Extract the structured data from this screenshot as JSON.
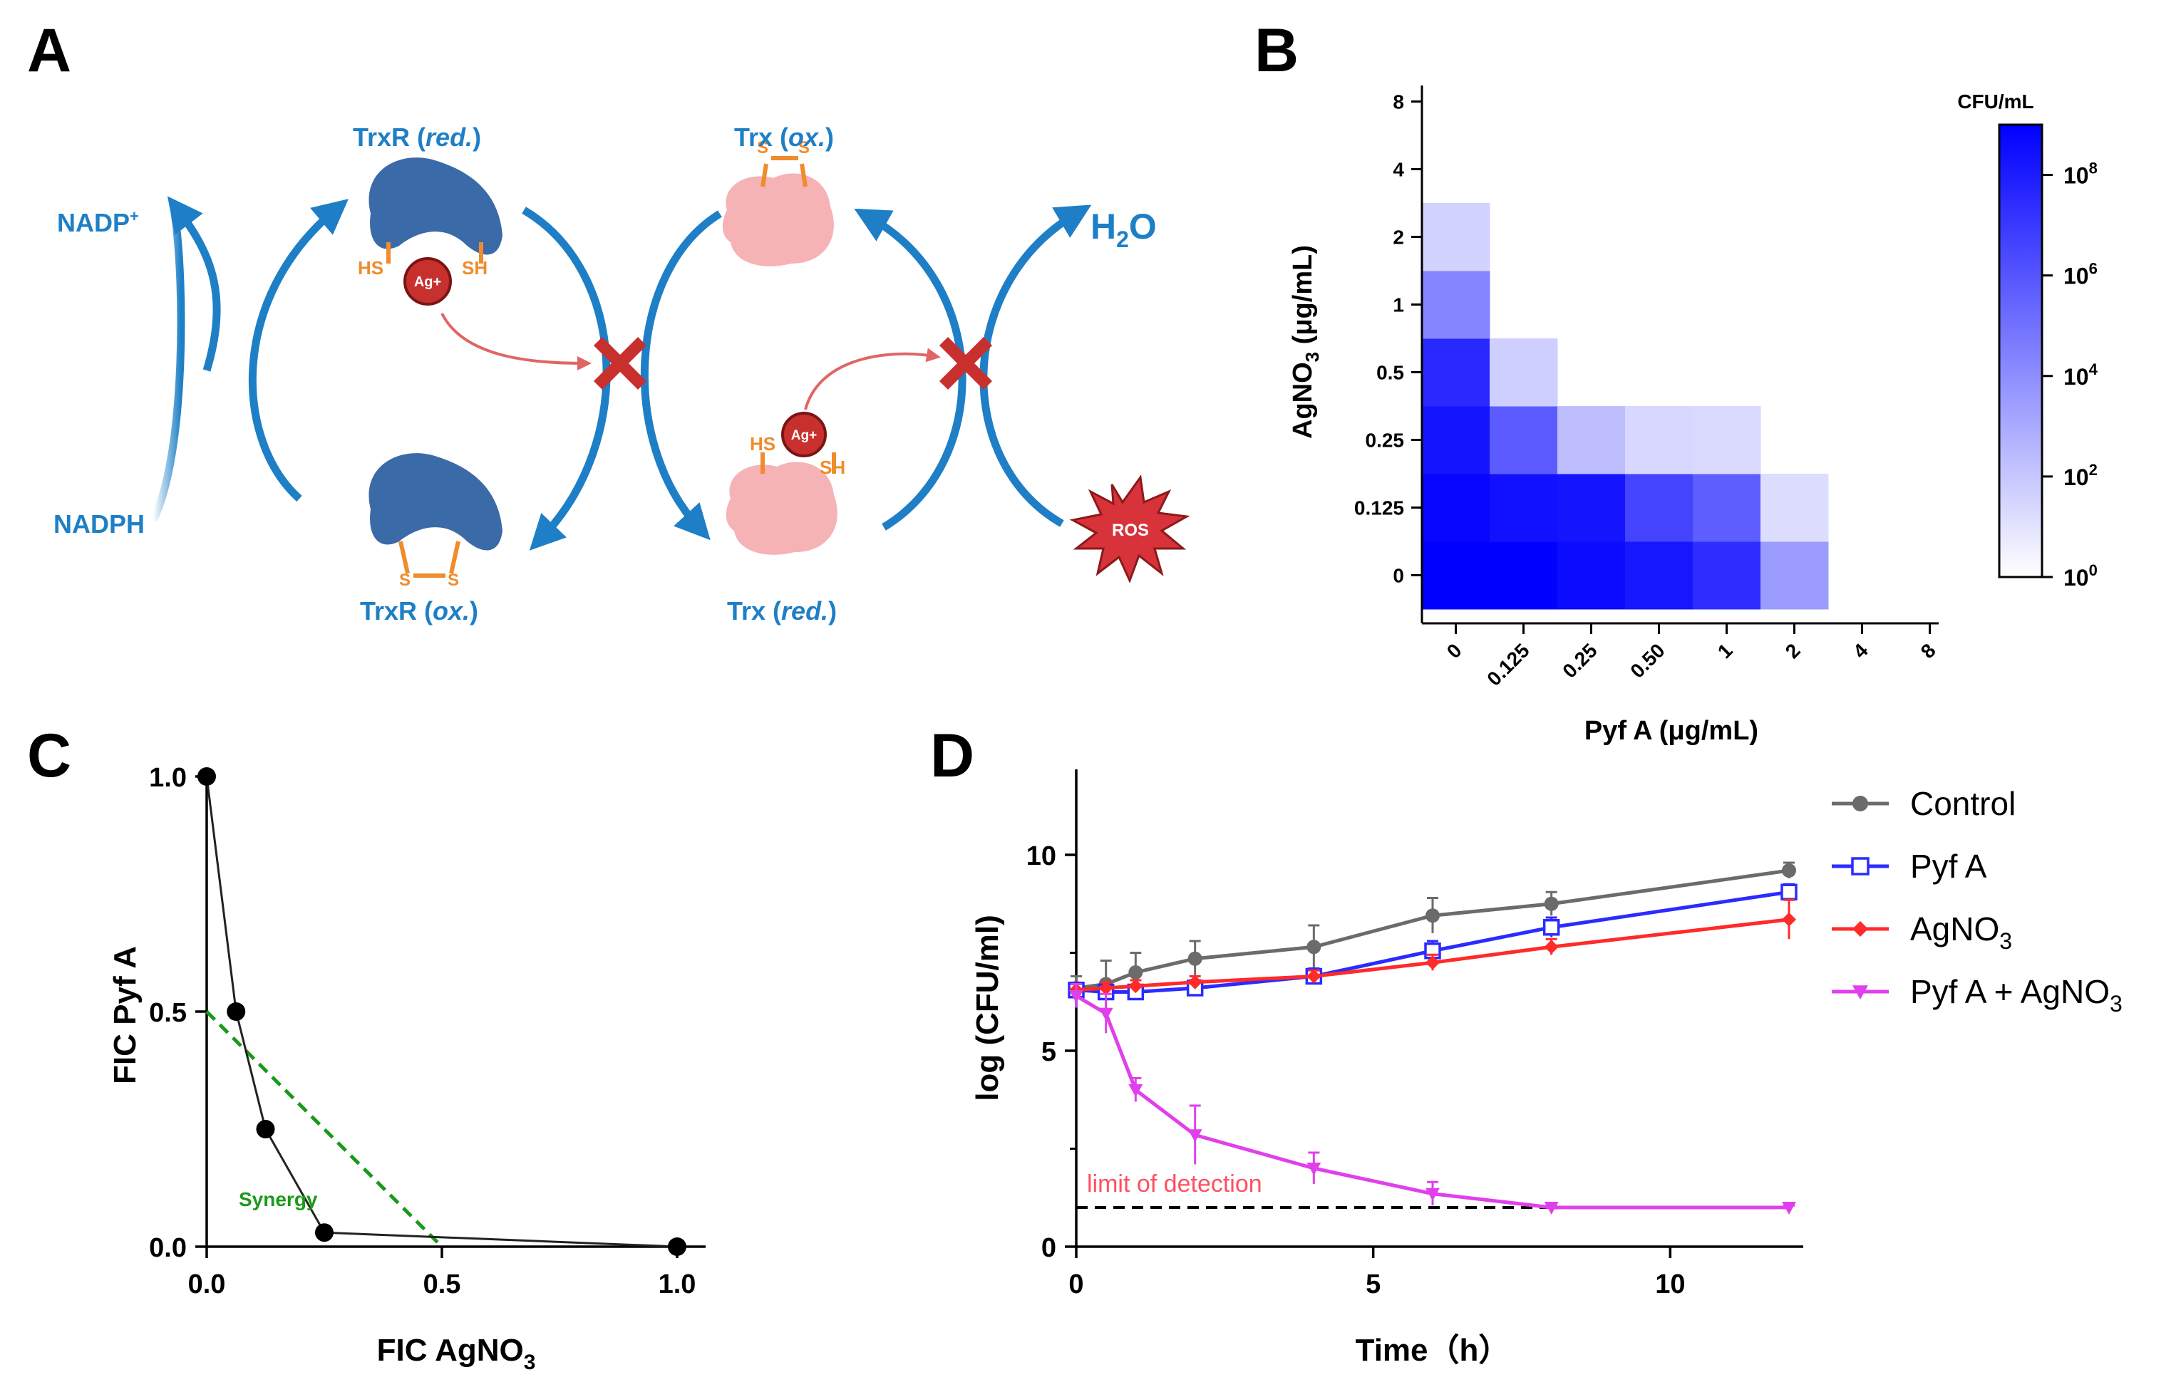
{
  "panels": {
    "A": {
      "letter": "A",
      "labels": {
        "trxr_red": "TrxR (",
        "trxr_red_it": "red.",
        "trxr_ox": "TrxR (",
        "trxr_ox_it": "ox.",
        "trx_ox": "Trx (",
        "trx_ox_it": "ox.",
        "trx_red": "Trx (",
        "trx_red_it": "red.",
        "close_paren": ")",
        "nadp": "NADP",
        "nadp_sup": "+",
        "nadph": "NADPH",
        "h2o_h": "H",
        "h2o_sub": "2",
        "h2o_o": "O",
        "ag": "Ag+",
        "hs": "HS",
        "sh": "SH",
        "s": "S",
        "ros": "ROS"
      },
      "colors": {
        "blue": "#1e7fc6",
        "enzyme": "#3b6aa8",
        "pink": "#f5b3b5",
        "red": "#c8302e"
      }
    },
    "B": {
      "letter": "B",
      "colorbar_title": "CFU/mL",
      "colorbar_ticks": [
        {
          "base": "10",
          "exp": "8"
        },
        {
          "base": "10",
          "exp": "6"
        },
        {
          "base": "10",
          "exp": "4"
        },
        {
          "base": "10",
          "exp": "2"
        },
        {
          "base": "10",
          "exp": "0"
        }
      ]
    },
    "C": {
      "letter": "C",
      "synergy_label": "Synergy"
    },
    "D": {
      "letter": "D",
      "lod_label": "limit of detection"
    }
  },
  "chart_data": [
    {
      "id": "B",
      "type": "heatmap",
      "title": "",
      "xlabel": "Pyf A (μg/mL)",
      "ylabel_main": "AgNO",
      "ylabel_sub": "3",
      "ylabel_tail": " (μg/mL)",
      "x_categories": [
        "0",
        "0.125",
        "0.25",
        "0.50",
        "1",
        "2",
        "4",
        "8"
      ],
      "y_categories": [
        "0",
        "0.125",
        "0.25",
        "0.5",
        "1",
        "2",
        "4",
        "8"
      ],
      "color_scale": "log10 CFU/mL, white (10^0) to blue (10^9)",
      "log_cfu": [
        [
          9.0,
          9.0,
          8.6,
          8.2,
          7.4,
          3.5,
          0,
          0
        ],
        [
          8.8,
          8.4,
          8.3,
          6.6,
          5.7,
          1.2,
          0,
          0
        ],
        [
          8.3,
          5.8,
          2.3,
          1.4,
          1.3,
          0,
          0,
          0
        ],
        [
          7.6,
          1.7,
          0,
          0,
          0,
          0,
          0,
          0
        ],
        [
          4.3,
          0,
          0,
          0,
          0,
          0,
          0,
          0
        ],
        [
          1.6,
          0,
          0,
          0,
          0,
          0,
          0,
          0
        ],
        [
          0,
          0,
          0,
          0,
          0,
          0,
          0,
          0
        ],
        [
          0,
          0,
          0,
          0,
          0,
          0,
          0,
          0
        ]
      ],
      "colorbar_range": [
        0,
        9
      ]
    },
    {
      "id": "C",
      "type": "line",
      "title": "",
      "xlabel_main": "FIC AgNO",
      "xlabel_sub": "3",
      "ylabel": "FIC Pyf A",
      "xlim": [
        0,
        1.0
      ],
      "ylim": [
        0,
        1.0
      ],
      "x_ticks": [
        "0.0",
        "0.5",
        "1.0"
      ],
      "y_ticks": [
        "0.0",
        "0.5",
        "1.0"
      ],
      "isobologram": {
        "x": [
          0,
          0.0625,
          0.125,
          0.25,
          1.0
        ],
        "y": [
          1.0,
          0.5,
          0.25,
          0.03,
          0
        ]
      },
      "synergy_line": {
        "x": [
          0,
          0.5
        ],
        "y": [
          0.5,
          0
        ]
      }
    },
    {
      "id": "D",
      "type": "line",
      "title": "",
      "xlabel": "Time（h）",
      "ylabel": "log (CFU/ml)",
      "xlim": [
        0,
        12
      ],
      "ylim": [
        0,
        12
      ],
      "x_ticks": [
        "0",
        "5",
        "10"
      ],
      "y_ticks": [
        "0",
        "5",
        "10"
      ],
      "limit_of_detection": 1.0,
      "series": [
        {
          "name": "Control",
          "name_sub": "",
          "name_tail": "",
          "color": "#6b6b6b",
          "marker": "circle",
          "x": [
            0,
            0.5,
            1,
            2,
            4,
            6,
            8,
            12
          ],
          "y": [
            6.6,
            6.7,
            7.0,
            7.35,
            7.65,
            8.45,
            8.75,
            9.6
          ],
          "err": [
            0.3,
            0.6,
            0.5,
            0.45,
            0.55,
            0.45,
            0.3,
            0.2
          ]
        },
        {
          "name": "Pyf A",
          "name_sub": "",
          "name_tail": "",
          "color": "#2b2bff",
          "marker": "square",
          "x": [
            0,
            0.5,
            1,
            2,
            4,
            6,
            8,
            12
          ],
          "y": [
            6.55,
            6.5,
            6.5,
            6.6,
            6.9,
            7.55,
            8.15,
            9.05
          ],
          "err": [
            0.15,
            0.15,
            0.15,
            0.2,
            0.2,
            0.25,
            0.25,
            0.2
          ]
        },
        {
          "name": "AgNO",
          "name_sub": "3",
          "name_tail": "",
          "color": "#ff2a2a",
          "marker": "diamond",
          "x": [
            0,
            0.5,
            1,
            2,
            4,
            6,
            8,
            12
          ],
          "y": [
            6.55,
            6.6,
            6.65,
            6.75,
            6.9,
            7.25,
            7.65,
            8.35
          ],
          "err": [
            0.15,
            0.15,
            0.15,
            0.15,
            0.15,
            0.2,
            0.2,
            0.5
          ]
        },
        {
          "name": "Pyf A + AgNO",
          "name_sub": "3",
          "name_tail": "",
          "color": "#e040ec",
          "marker": "triangle-down",
          "x": [
            0,
            0.5,
            1,
            2,
            4,
            6,
            8,
            12
          ],
          "y": [
            6.4,
            5.95,
            4.0,
            2.85,
            2.0,
            1.35,
            1.0,
            1.0
          ],
          "err": [
            0.3,
            0.5,
            0.3,
            0.75,
            0.4,
            0.3,
            0.05,
            0.05
          ]
        }
      ]
    }
  ]
}
